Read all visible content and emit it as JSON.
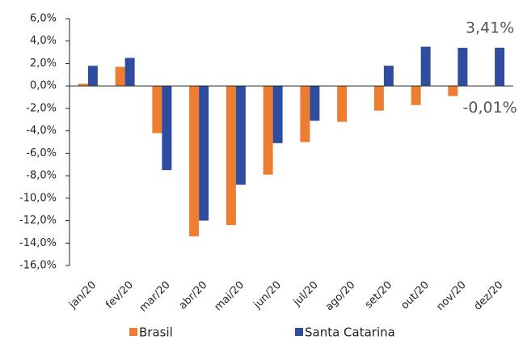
{
  "chart_data": {
    "type": "bar",
    "categories": [
      "jan/20",
      "fev/20",
      "mar/20",
      "abr/20",
      "mai/20",
      "jun/20",
      "jul/20",
      "ago/20",
      "set/20",
      "out/20",
      "nov/20",
      "dez/20"
    ],
    "series": [
      {
        "name": "Brasil",
        "color": "#ed7d31",
        "values": [
          0.2,
          1.7,
          -4.2,
          -13.4,
          -12.4,
          -7.9,
          -5.0,
          -3.2,
          -2.2,
          -1.7,
          -0.9,
          -0.01
        ],
        "value_labels": [
          null,
          null,
          null,
          null,
          null,
          null,
          null,
          null,
          null,
          null,
          null,
          "-0,01%"
        ]
      },
      {
        "name": "Santa Catarina",
        "color": "#2f4d9e",
        "values": [
          1.8,
          2.5,
          -7.5,
          -12.0,
          -8.8,
          -5.1,
          -3.1,
          0.0,
          1.8,
          3.5,
          3.4,
          3.41
        ],
        "value_labels": [
          null,
          null,
          null,
          null,
          null,
          null,
          null,
          null,
          null,
          null,
          null,
          "3,41%"
        ]
      }
    ],
    "ylim": [
      -16,
      6
    ],
    "yticks": [
      {
        "value": -16,
        "label": "-16,0%"
      },
      {
        "value": -14,
        "label": "-14,0%"
      },
      {
        "value": -12,
        "label": "-12,0%"
      },
      {
        "value": -10,
        "label": "-10,0%"
      },
      {
        "value": -8,
        "label": "-8,0%"
      },
      {
        "value": -6,
        "label": "-6,0%"
      },
      {
        "value": -4,
        "label": "-4,0%"
      },
      {
        "value": -2,
        "label": "-2,0%"
      },
      {
        "value": 0,
        "label": "0,0%"
      },
      {
        "value": 2,
        "label": "2,0%"
      },
      {
        "value": 4,
        "label": "4,0%"
      },
      {
        "value": 6,
        "label": "6,0%"
      }
    ],
    "grid": false,
    "legend": "bottom"
  }
}
